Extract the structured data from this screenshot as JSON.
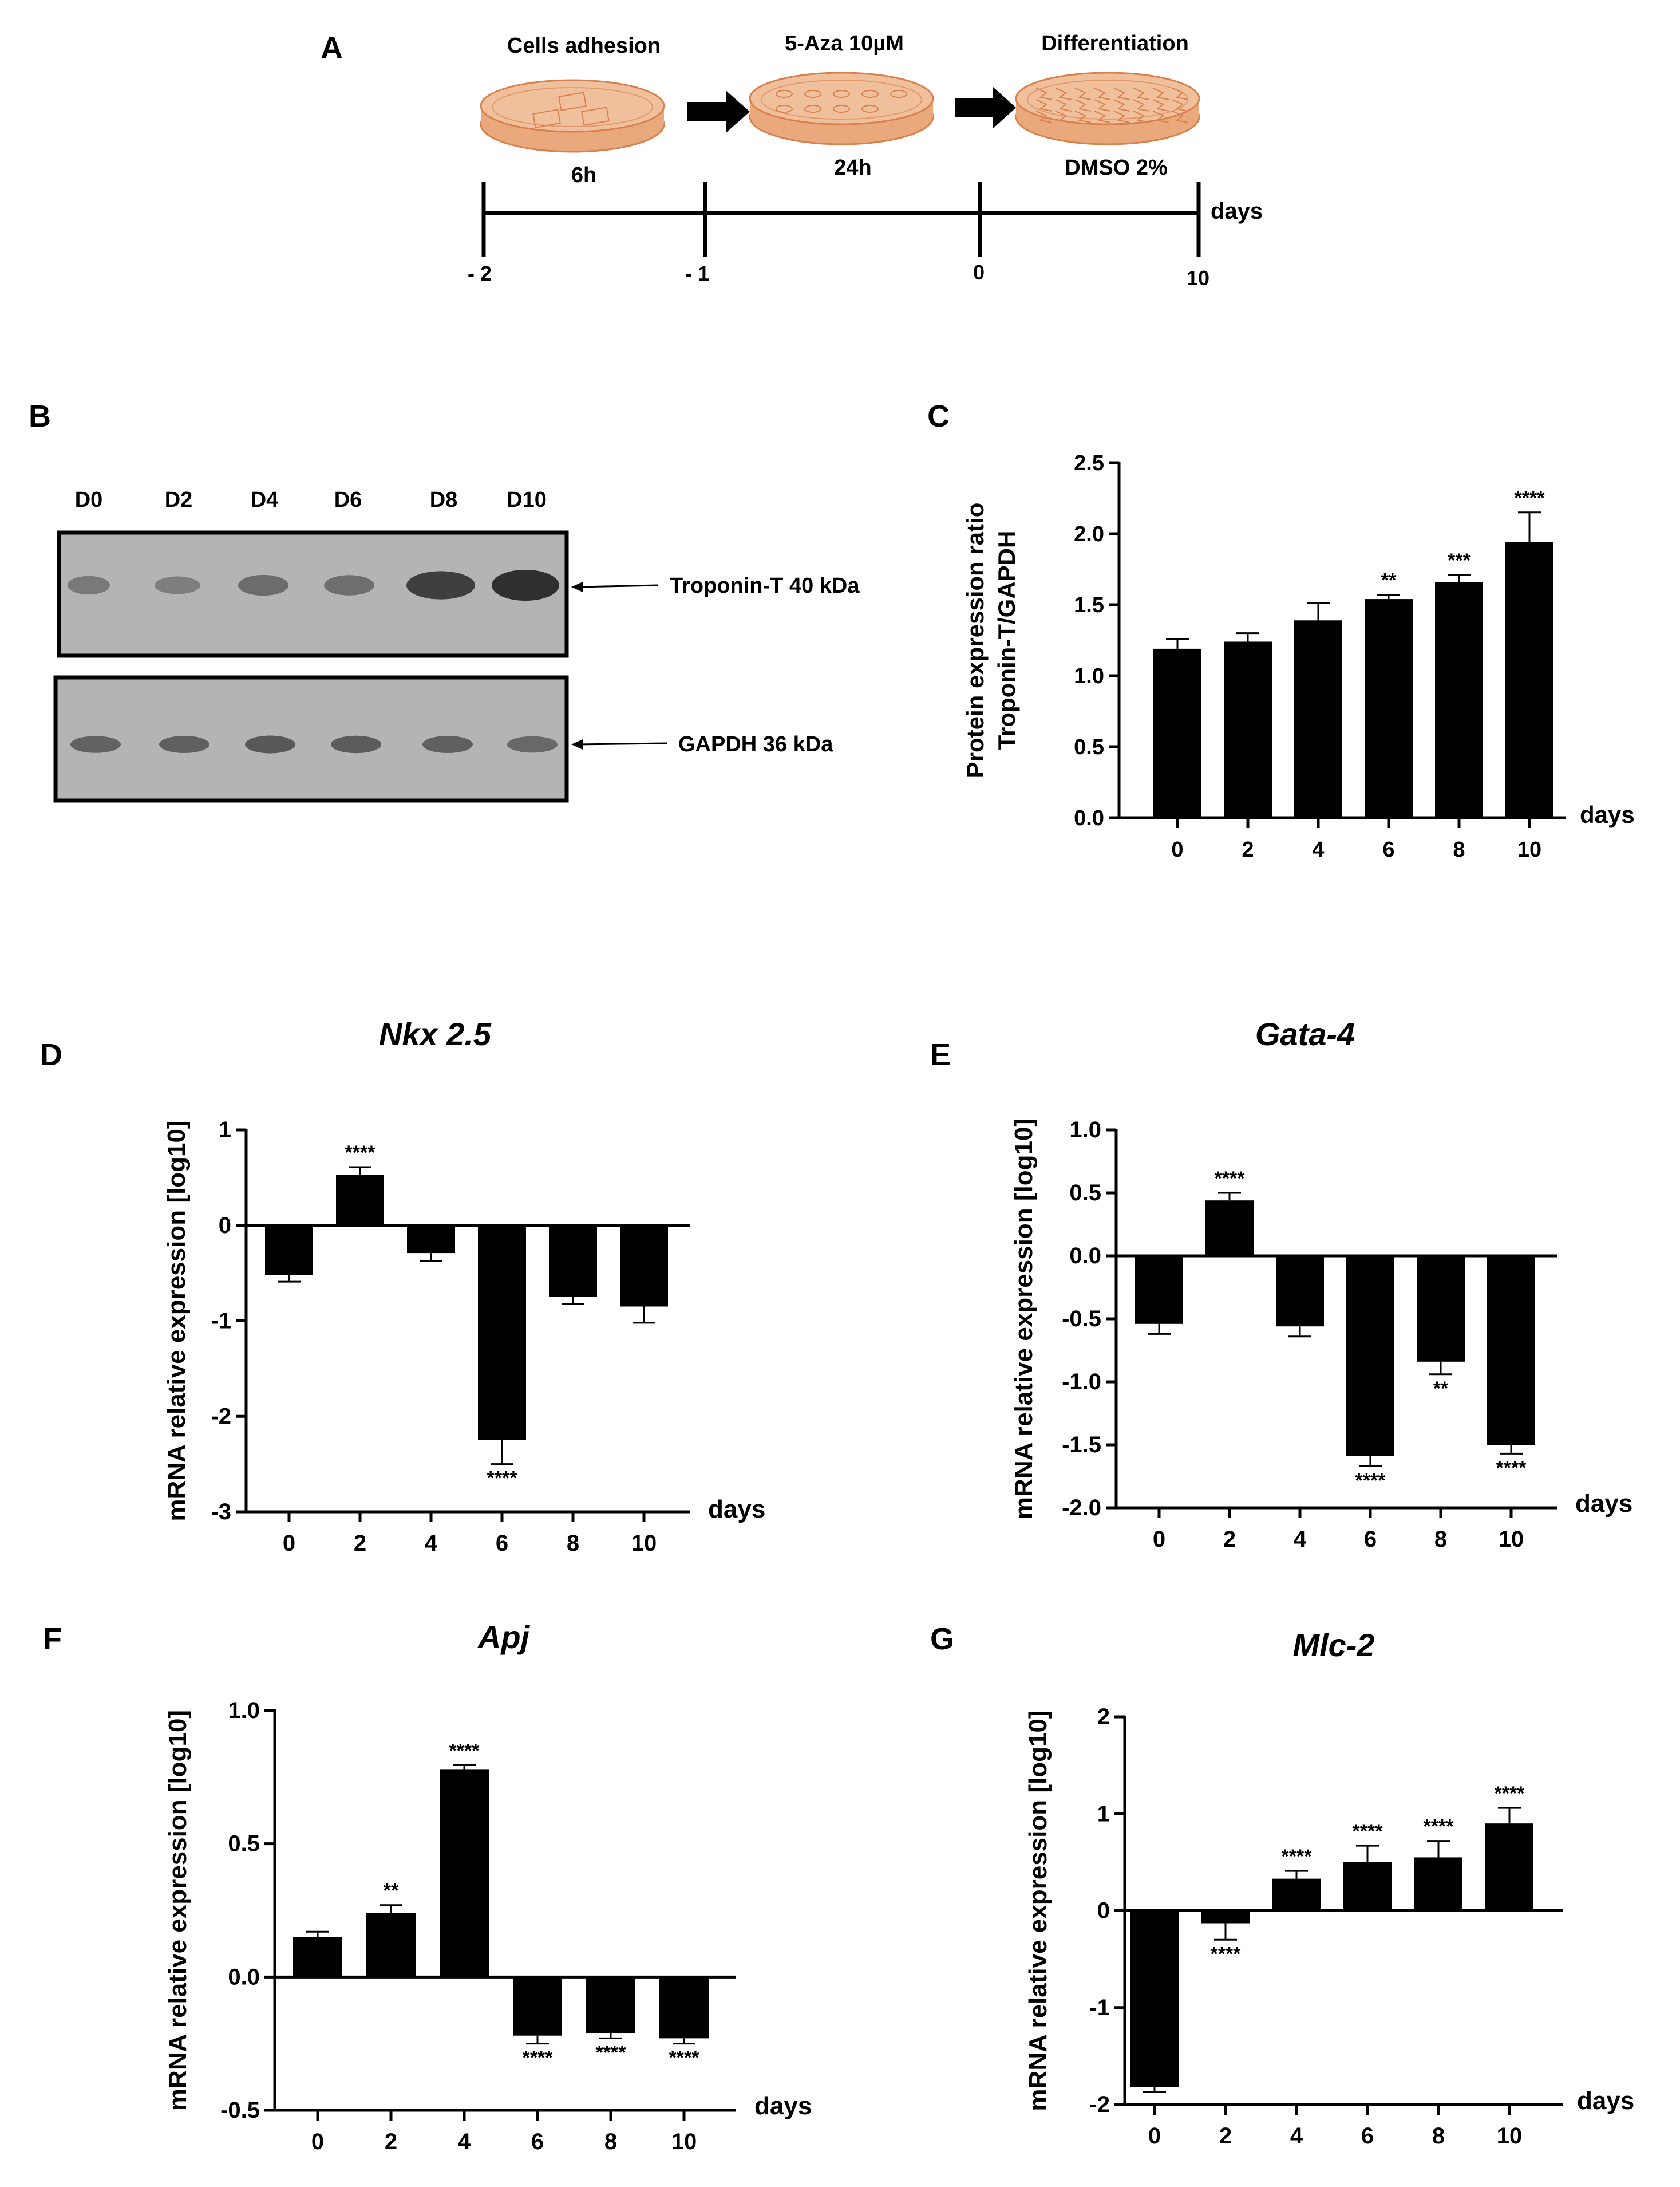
{
  "panel_letters": {
    "a": "A",
    "b": "B",
    "c": "C",
    "d": "D",
    "e": "E",
    "f": "F",
    "g": "G"
  },
  "protocol": {
    "steps": [
      {
        "label": "Cells adhesion",
        "duration": "6h"
      },
      {
        "label": "5-Aza 10µM",
        "duration": "24h"
      },
      {
        "label": "Differentiation",
        "duration": "DMSO 2%"
      }
    ],
    "timeline_ticks": [
      "- 2",
      "- 1",
      "0",
      "10"
    ],
    "timeline_unit": "days",
    "dish_color": "#e9a97c",
    "dish_edge": "#d9814c"
  },
  "western_blot": {
    "lanes": [
      "D0",
      "D2",
      "D4",
      "D6",
      "D8",
      "D10"
    ],
    "troponin_label": "Troponin-T 40 kDa",
    "gapdh_label": "GAPDH 36 kDa",
    "troponin_intensity": [
      0.38,
      0.34,
      0.48,
      0.46,
      0.82,
      0.95
    ],
    "gapdh_intensity": [
      0.6,
      0.62,
      0.68,
      0.65,
      0.62,
      0.55
    ],
    "blot_bg": "#b4b4b4"
  },
  "chart_data": [
    {
      "id": "C",
      "type": "bar",
      "title": "",
      "ylabel": "Protein expression ratio\nTroponin-T/GAPDH",
      "ylabel_lines": [
        "Protein expression ratio",
        "Troponin-T/GAPDH"
      ],
      "xlabel": "days",
      "categories": [
        "0",
        "2",
        "4",
        "6",
        "8",
        "10"
      ],
      "values": [
        1.19,
        1.24,
        1.39,
        1.54,
        1.66,
        1.94
      ],
      "errors": [
        0.07,
        0.06,
        0.12,
        0.03,
        0.05,
        0.21
      ],
      "significance": [
        "",
        "",
        "",
        "**",
        "***",
        "****"
      ],
      "ylim": [
        0,
        2.5
      ],
      "yticks": [
        "0.0",
        "0.5",
        "1.0",
        "1.5",
        "2.0",
        "2.5"
      ]
    },
    {
      "id": "D",
      "type": "bar",
      "title": "Nkx 2.5",
      "ylabel": "mRNA relative expression [log10]",
      "xlabel": "days",
      "categories": [
        "0",
        "2",
        "4",
        "6",
        "8",
        "10"
      ],
      "values": [
        -0.52,
        0.53,
        -0.29,
        -2.25,
        -0.75,
        -0.85
      ],
      "errors": [
        0.07,
        0.08,
        0.08,
        0.25,
        0.07,
        0.17
      ],
      "significance": [
        "",
        "****",
        "",
        "****",
        "",
        ""
      ],
      "ylim": [
        -3,
        1
      ],
      "yticks": [
        "-3",
        "-2",
        "-1",
        "0",
        "1"
      ]
    },
    {
      "id": "E",
      "type": "bar",
      "title": "Gata-4",
      "ylabel": "mRNA relative expression [log10]",
      "xlabel": "days",
      "categories": [
        "0",
        "2",
        "4",
        "6",
        "8",
        "10"
      ],
      "values": [
        -0.54,
        0.44,
        -0.56,
        -1.59,
        -0.84,
        -1.5
      ],
      "errors": [
        0.08,
        0.06,
        0.08,
        0.08,
        0.1,
        0.07
      ],
      "significance": [
        "",
        "****",
        "",
        "****",
        "**",
        "****"
      ],
      "ylim": [
        -2.0,
        1.0
      ],
      "yticks": [
        "-2.0",
        "-1.5",
        "-1.0",
        "-0.5",
        "0.0",
        "0.5",
        "1.0"
      ]
    },
    {
      "id": "F",
      "type": "bar",
      "title": "Apj",
      "ylabel": "mRNA relative expression [log10]",
      "xlabel": "days",
      "categories": [
        "0",
        "2",
        "4",
        "6",
        "8",
        "10"
      ],
      "values": [
        0.15,
        0.24,
        0.78,
        -0.22,
        -0.21,
        -0.23
      ],
      "errors": [
        0.02,
        0.03,
        0.015,
        0.03,
        0.02,
        0.02
      ],
      "significance": [
        "",
        "**",
        "****",
        "****",
        "****",
        "****"
      ],
      "ylim": [
        -0.5,
        1.0
      ],
      "yticks": [
        "-0.5",
        "0.0",
        "0.5",
        "1.0"
      ]
    },
    {
      "id": "G",
      "type": "bar",
      "title": "Mlc-2",
      "ylabel": "mRNA relative expression [log10]",
      "xlabel": "days",
      "categories": [
        "0",
        "2",
        "4",
        "6",
        "8",
        "10"
      ],
      "values": [
        -1.82,
        -0.13,
        0.33,
        0.5,
        0.55,
        0.9
      ],
      "errors": [
        0.05,
        0.17,
        0.08,
        0.17,
        0.17,
        0.16
      ],
      "significance": [
        "",
        "****",
        "****",
        "****",
        "****",
        "****"
      ],
      "ylim": [
        -2,
        2
      ],
      "yticks": [
        "-2",
        "-1",
        "0",
        "1",
        "2"
      ]
    }
  ]
}
